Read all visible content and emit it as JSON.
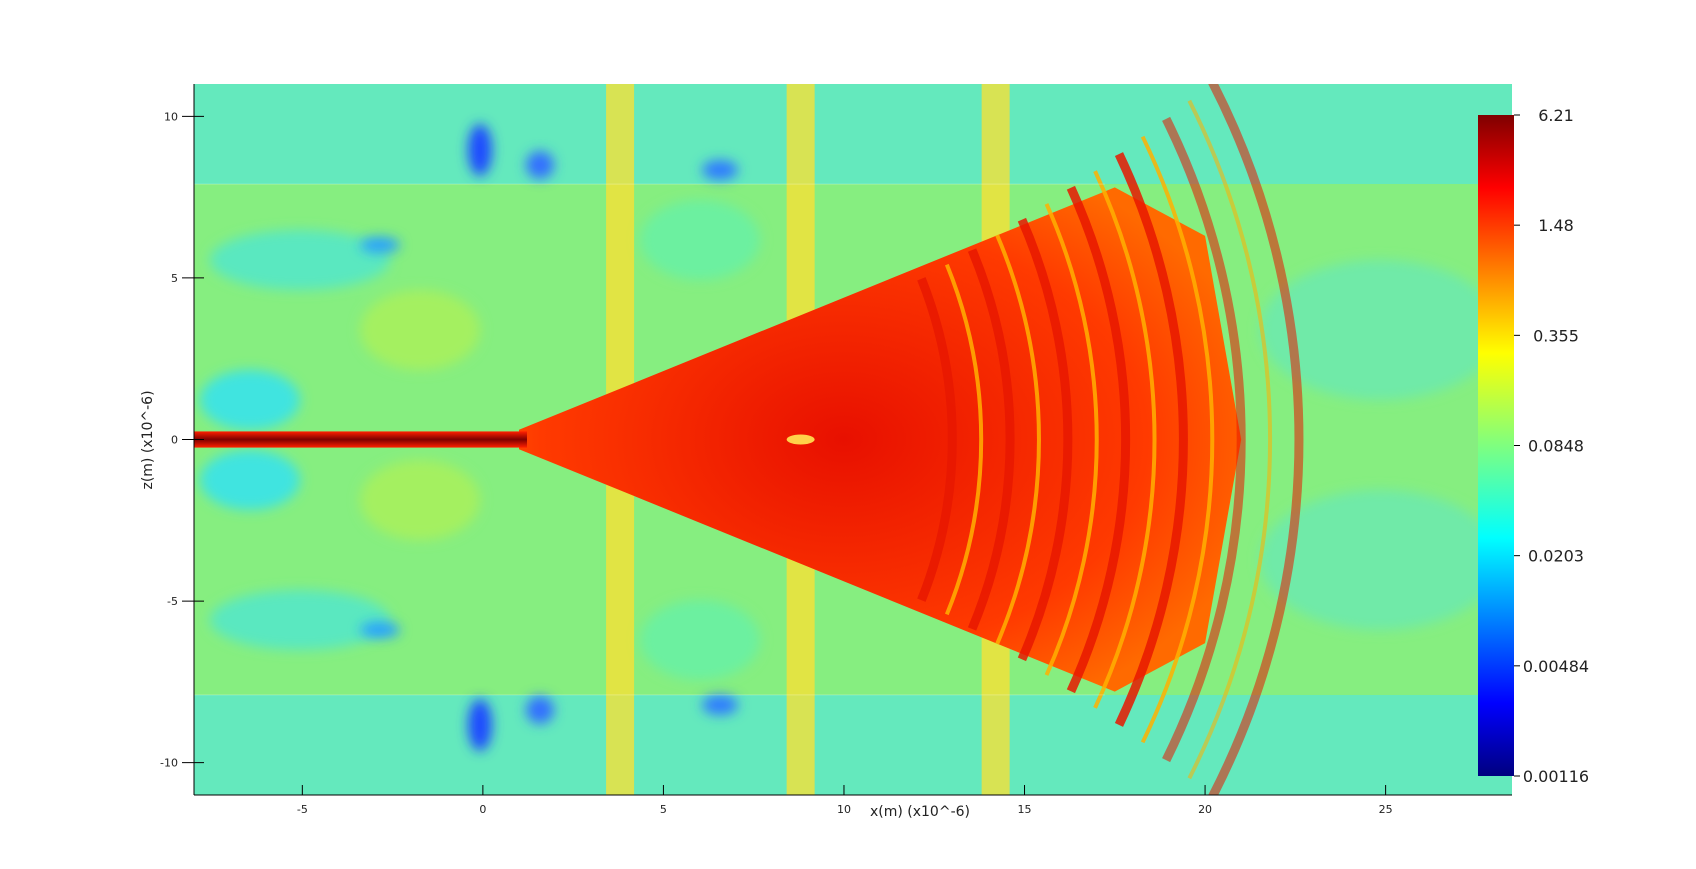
{
  "chart_data": {
    "type": "heatmap",
    "title": "",
    "xlabel": "x(m) (x10^-6)",
    "ylabel": "z(m) (x10^-6)",
    "xlim": [
      -8,
      28.5
    ],
    "ylim": [
      -11,
      11
    ],
    "x_ticks": [
      {
        "value": -5,
        "label": "-5"
      },
      {
        "value": 0,
        "label": "0"
      },
      {
        "value": 5,
        "label": "5"
      },
      {
        "value": 10,
        "label": "10"
      },
      {
        "value": 15,
        "label": "15"
      },
      {
        "value": 20,
        "label": "20"
      },
      {
        "value": 25,
        "label": "25"
      }
    ],
    "y_ticks": [
      {
        "value": 10,
        "label": "10"
      },
      {
        "value": 5,
        "label": "5"
      },
      {
        "value": 0,
        "label": "0"
      },
      {
        "value": -5,
        "label": "-5"
      },
      {
        "value": -10,
        "label": "-10"
      }
    ],
    "colorbar": {
      "scale": "log",
      "min": 0.00116,
      "max": 6.21,
      "colormap": "jet",
      "ticks": [
        "6.21",
        "1.48",
        "0.355",
        "0.0848",
        "0.0203",
        "0.00484",
        "0.00116"
      ]
    },
    "colormap_stops": [
      "#00007f",
      "#0000ff",
      "#00ffff",
      "#ffff00",
      "#ff0000",
      "#7f0000"
    ],
    "regions": {
      "waveguide": {
        "x_start": -8,
        "x_end": 1,
        "z_half_width": 0.25,
        "value": 6.0
      },
      "cone": {
        "apex_x": 1,
        "apex_z": 0,
        "end_x": 17.5,
        "z_half_width_at_end": 7.8,
        "value": 1.6
      },
      "arc_fringes": {
        "x_start": 13,
        "x_end": 23,
        "value": 0.8
      },
      "slab_boundaries_z": [
        7.9,
        -7.9
      ],
      "vertical_bright_bands_x": [
        3.8,
        8.8,
        14.2
      ],
      "background_value": 0.07
    }
  }
}
